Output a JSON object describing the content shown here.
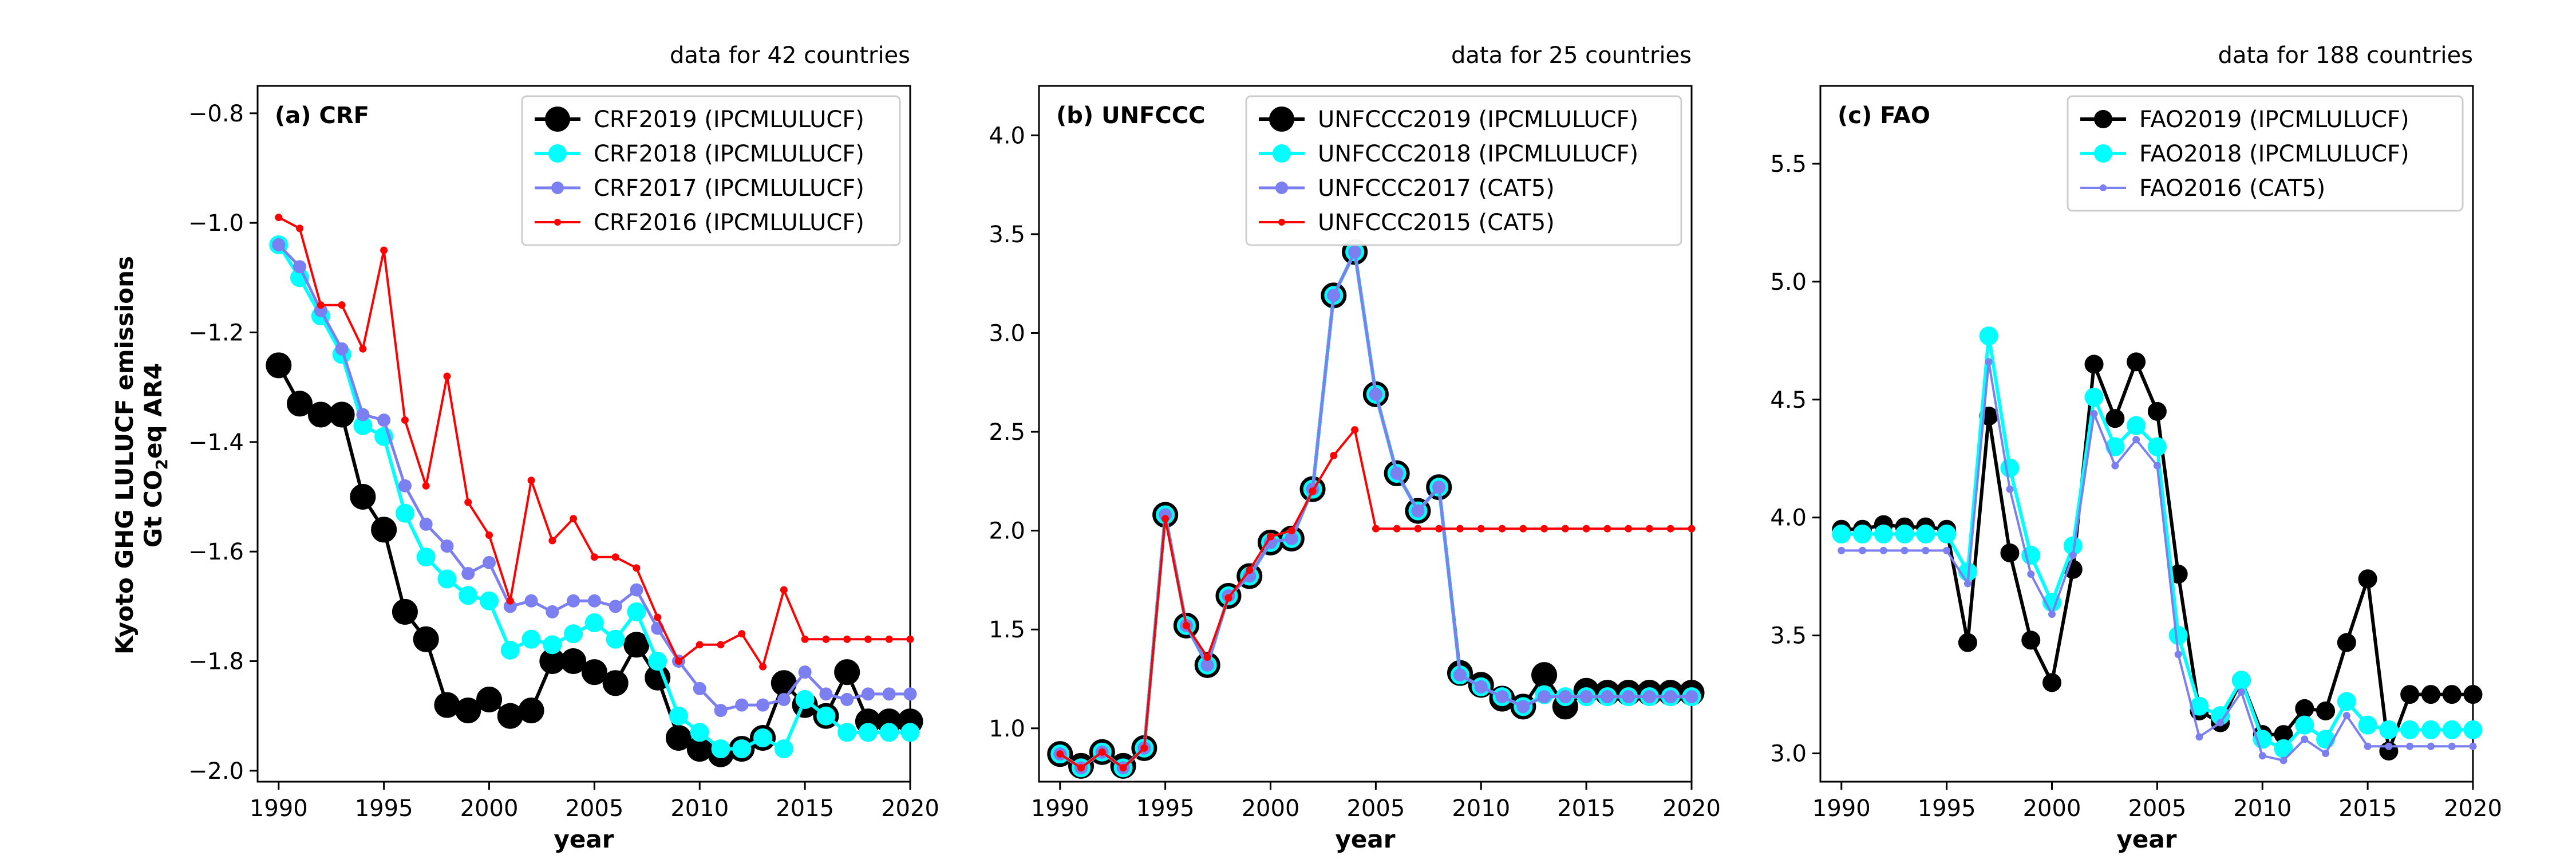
{
  "figure": {
    "ylabel_line1": "Kyoto GHG LULUCF emissions",
    "ylabel_line2_pre": "Gt CO",
    "ylabel_line2_sub": "2",
    "ylabel_line2_post": "eq AR4"
  },
  "chart_data": [
    {
      "type": "line",
      "panel_label": "(a) CRF",
      "note": "data for 42 countries",
      "xlabel": "year",
      "xlim": [
        1989,
        2020
      ],
      "ylim": [
        -2.02,
        -0.75
      ],
      "xticks": [
        1990,
        1995,
        2000,
        2005,
        2010,
        2015,
        2020
      ],
      "yticks": [
        -2.0,
        -1.8,
        -1.6,
        -1.4,
        -1.2,
        -1.0,
        -0.8
      ],
      "ytick_labels": [
        "−2.0",
        "−1.8",
        "−1.6",
        "−1.4",
        "−1.2",
        "−1.0",
        "−0.8"
      ],
      "x": [
        1990,
        1991,
        1992,
        1993,
        1994,
        1995,
        1996,
        1997,
        1998,
        1999,
        2000,
        2001,
        2002,
        2003,
        2004,
        2005,
        2006,
        2007,
        2008,
        2009,
        2010,
        2011,
        2012,
        2013,
        2014,
        2015,
        2016,
        2017,
        2018,
        2019,
        2020
      ],
      "legend_position": "upper right",
      "series": [
        {
          "name": "CRF2019 (IPCMLULUCF)",
          "color": "#000000",
          "marker": "large",
          "values": [
            -1.26,
            -1.33,
            -1.35,
            -1.35,
            -1.5,
            -1.56,
            -1.71,
            -1.76,
            -1.88,
            -1.89,
            -1.87,
            -1.9,
            -1.89,
            -1.8,
            -1.8,
            -1.82,
            -1.84,
            -1.77,
            -1.83,
            -1.94,
            -1.96,
            -1.97,
            -1.96,
            -1.94,
            -1.84,
            -1.88,
            -1.9,
            -1.82,
            -1.91,
            -1.91,
            -1.91
          ]
        },
        {
          "name": "CRF2018 (IPCMLULUCF)",
          "color": "#00ffff",
          "marker": "medium",
          "values": [
            -1.04,
            -1.1,
            -1.17,
            -1.24,
            -1.37,
            -1.39,
            -1.53,
            -1.61,
            -1.65,
            -1.68,
            -1.69,
            -1.78,
            -1.76,
            -1.77,
            -1.75,
            -1.73,
            -1.76,
            -1.71,
            -1.8,
            -1.9,
            -1.93,
            -1.96,
            -1.96,
            -1.94,
            -1.96,
            -1.87,
            -1.9,
            -1.93,
            -1.93,
            -1.93,
            -1.93
          ]
        },
        {
          "name": "CRF2017 (IPCMLULUCF)",
          "color": "#7b7ff0",
          "marker": "small",
          "values": [
            -1.04,
            -1.08,
            -1.16,
            -1.23,
            -1.35,
            -1.36,
            -1.48,
            -1.55,
            -1.59,
            -1.64,
            -1.62,
            -1.7,
            -1.69,
            -1.71,
            -1.69,
            -1.69,
            -1.7,
            -1.67,
            -1.74,
            -1.8,
            -1.85,
            -1.89,
            -1.88,
            -1.88,
            -1.87,
            -1.82,
            -1.86,
            -1.87,
            -1.86,
            -1.86,
            -1.86
          ]
        },
        {
          "name": "CRF2016 (IPCMLULUCF)",
          "color": "#ff0000",
          "marker": "tiny",
          "values": [
            -0.99,
            -1.01,
            -1.15,
            -1.15,
            -1.23,
            -1.05,
            -1.36,
            -1.48,
            -1.28,
            -1.51,
            -1.57,
            -1.69,
            -1.47,
            -1.58,
            -1.54,
            -1.61,
            -1.61,
            -1.63,
            -1.72,
            -1.8,
            -1.77,
            -1.77,
            -1.75,
            -1.81,
            -1.67,
            -1.76,
            -1.76,
            -1.76,
            -1.76,
            -1.76,
            -1.76
          ]
        }
      ]
    },
    {
      "type": "line",
      "panel_label": "(b) UNFCCC",
      "note": "data for 25 countries",
      "xlabel": "year",
      "xlim": [
        1989,
        2020
      ],
      "ylim": [
        0.73,
        4.25
      ],
      "xticks": [
        1990,
        1995,
        2000,
        2005,
        2010,
        2015,
        2020
      ],
      "yticks": [
        1.0,
        1.5,
        2.0,
        2.5,
        3.0,
        3.5,
        4.0
      ],
      "ytick_labels": [
        "1.0",
        "1.5",
        "2.0",
        "2.5",
        "3.0",
        "3.5",
        "4.0"
      ],
      "x": [
        1990,
        1991,
        1992,
        1993,
        1994,
        1995,
        1996,
        1997,
        1998,
        1999,
        2000,
        2001,
        2002,
        2003,
        2004,
        2005,
        2006,
        2007,
        2008,
        2009,
        2010,
        2011,
        2012,
        2013,
        2014,
        2015,
        2016,
        2017,
        2018,
        2019,
        2020
      ],
      "legend_position": "upper right",
      "series": [
        {
          "name": "UNFCCC2019 (IPCMLULUCF)",
          "color": "#000000",
          "marker": "large",
          "values": [
            0.87,
            0.81,
            0.88,
            0.81,
            0.9,
            2.08,
            1.52,
            1.32,
            1.67,
            1.77,
            1.94,
            1.96,
            2.21,
            3.19,
            3.41,
            2.69,
            2.29,
            2.1,
            2.22,
            1.28,
            1.22,
            1.15,
            1.11,
            1.27,
            1.11,
            1.19,
            1.18,
            1.18,
            1.18,
            1.18,
            1.18
          ]
        },
        {
          "name": "UNFCCC2018 (IPCMLULUCF)",
          "color": "#00ffff",
          "marker": "medium",
          "values": [
            0.87,
            0.8,
            0.88,
            0.8,
            0.9,
            2.08,
            1.52,
            1.32,
            1.67,
            1.77,
            1.94,
            1.96,
            2.21,
            3.19,
            3.41,
            2.69,
            2.29,
            2.1,
            2.22,
            1.27,
            1.21,
            1.16,
            1.11,
            1.17,
            1.16,
            1.16,
            1.16,
            1.16,
            1.16,
            1.16,
            1.16
          ]
        },
        {
          "name": "UNFCCC2017 (CAT5)",
          "color": "#7b7ff0",
          "marker": "small",
          "values": [
            0.87,
            0.8,
            0.88,
            0.8,
            0.9,
            2.08,
            1.52,
            1.32,
            1.67,
            1.77,
            1.94,
            1.96,
            2.21,
            3.19,
            3.41,
            2.69,
            2.29,
            2.1,
            2.22,
            1.27,
            1.21,
            1.16,
            1.11,
            1.16,
            1.16,
            1.16,
            1.16,
            1.16,
            1.16,
            1.16,
            1.16
          ]
        },
        {
          "name": "UNFCCC2015 (CAT5)",
          "color": "#ff0000",
          "marker": "tiny",
          "values": [
            0.87,
            0.8,
            0.88,
            0.8,
            0.9,
            2.06,
            1.52,
            1.36,
            1.66,
            1.8,
            1.97,
            2.0,
            2.2,
            2.38,
            2.51,
            2.01,
            2.01,
            2.01,
            2.01,
            2.01,
            2.01,
            2.01,
            2.01,
            2.01,
            2.01,
            2.01,
            2.01,
            2.01,
            2.01,
            2.01,
            2.01
          ]
        }
      ]
    },
    {
      "type": "line",
      "panel_label": "(c) FAO",
      "note": "data for 188 countries",
      "xlabel": "year",
      "xlim": [
        1989,
        2020
      ],
      "ylim": [
        2.88,
        5.83
      ],
      "xticks": [
        1990,
        1995,
        2000,
        2005,
        2010,
        2015,
        2020
      ],
      "yticks": [
        3.0,
        3.5,
        4.0,
        4.5,
        5.0,
        5.5
      ],
      "ytick_labels": [
        "3.0",
        "3.5",
        "4.0",
        "4.5",
        "5.0",
        "5.5"
      ],
      "x": [
        1990,
        1991,
        1992,
        1993,
        1994,
        1995,
        1996,
        1997,
        1998,
        1999,
        2000,
        2001,
        2002,
        2003,
        2004,
        2005,
        2006,
        2007,
        2008,
        2009,
        2010,
        2011,
        2012,
        2013,
        2014,
        2015,
        2016,
        2017,
        2018,
        2019,
        2020
      ],
      "legend_position": "upper right",
      "series": [
        {
          "name": "FAO2019 (IPCMLULUCF)",
          "color": "#000000",
          "marker": "medium",
          "values": [
            3.95,
            3.95,
            3.97,
            3.96,
            3.96,
            3.95,
            3.47,
            4.43,
            3.85,
            3.48,
            3.3,
            3.78,
            4.65,
            4.42,
            4.66,
            4.45,
            3.76,
            3.18,
            3.13,
            3.31,
            3.08,
            3.08,
            3.19,
            3.18,
            3.47,
            3.74,
            3.01,
            3.25,
            3.25,
            3.25,
            3.25
          ]
        },
        {
          "name": "FAO2018 (IPCMLULUCF)",
          "color": "#00ffff",
          "marker": "medium",
          "values": [
            3.93,
            3.93,
            3.93,
            3.93,
            3.93,
            3.93,
            3.77,
            4.77,
            4.21,
            3.84,
            3.64,
            3.88,
            4.51,
            4.3,
            4.39,
            4.3,
            3.5,
            3.2,
            3.16,
            3.31,
            3.06,
            3.02,
            3.12,
            3.06,
            3.22,
            3.12,
            3.1,
            3.1,
            3.1,
            3.1,
            3.1
          ]
        },
        {
          "name": "FAO2016 (CAT5)",
          "color": "#7b7ff0",
          "marker": "tiny",
          "values": [
            3.86,
            3.86,
            3.86,
            3.86,
            3.86,
            3.86,
            3.72,
            4.66,
            4.12,
            3.76,
            3.59,
            3.84,
            4.44,
            4.22,
            4.33,
            4.22,
            3.42,
            3.07,
            3.13,
            3.26,
            2.99,
            2.97,
            3.06,
            3.0,
            3.16,
            3.03,
            3.03,
            3.03,
            3.03,
            3.03,
            3.03
          ]
        }
      ]
    }
  ]
}
